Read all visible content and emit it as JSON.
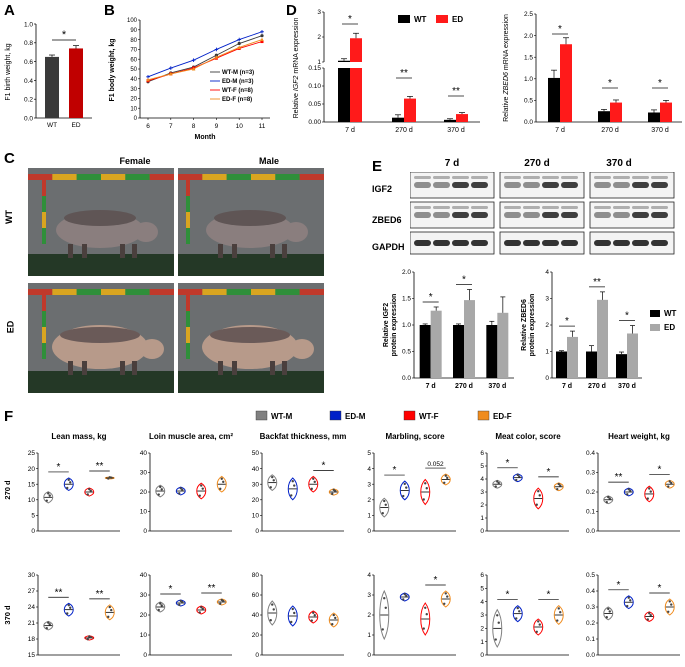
{
  "figure": {
    "panel_labels": [
      "A",
      "B",
      "C",
      "D",
      "E",
      "F"
    ],
    "colors": {
      "wt_dark": "#3a3a3a",
      "ed_red": "#c00000",
      "wtm": "#808080",
      "edm": "#0020c8",
      "wtf": "#ff0000",
      "edf": "#f08c1e",
      "wt_black": "#000000",
      "ed_gray": "#a8a8a8",
      "bright_red": "#ff1a1a"
    }
  },
  "panel_a": {
    "chart_data": {
      "type": "bar",
      "ylabel": "F1 birth weight, kg",
      "categories": [
        "WT",
        "ED"
      ],
      "values": [
        0.65,
        0.74
      ],
      "errors": [
        0.02,
        0.03
      ],
      "ylim": [
        0,
        1.0
      ],
      "yticks": [
        "0.0",
        "0.2",
        "0.4",
        "0.6",
        "0.8",
        "1.0"
      ],
      "sig": "*"
    }
  },
  "panel_b": {
    "chart_data": {
      "type": "line",
      "ylabel": "F1 body weight, kg",
      "xlabel": "Month",
      "x": [
        6,
        7,
        8,
        9,
        10,
        11
      ],
      "ylim": [
        0,
        100
      ],
      "yticks": [
        "0",
        "10",
        "20",
        "30",
        "40",
        "50",
        "60",
        "70",
        "80",
        "90",
        "100"
      ],
      "series": [
        {
          "name": "WT-M (n=3)",
          "values": [
            37,
            46,
            52,
            64,
            76,
            84
          ]
        },
        {
          "name": "ED-M (n=3)",
          "values": [
            42,
            51,
            59,
            70,
            80,
            88
          ]
        },
        {
          "name": "WT-F (n=8)",
          "values": [
            38,
            45,
            51,
            61,
            71,
            78
          ]
        },
        {
          "name": "ED-F (n=8)",
          "values": [
            39,
            45,
            50,
            62,
            72,
            80
          ]
        }
      ]
    }
  },
  "panel_c": {
    "col_headers": [
      "Female",
      "Male"
    ],
    "row_labels": [
      "WT",
      "ED"
    ]
  },
  "panel_d": {
    "legend": [
      "WT",
      "ED"
    ],
    "chart_data": [
      {
        "type": "bar",
        "ylabel_pre": "Relative ",
        "ylabel_gene": "IGF2",
        "ylabel_post": " mRNA expression",
        "categories": [
          "7 d",
          "270 d",
          "370 d"
        ],
        "series": [
          {
            "name": "WT",
            "values": [
              1.05,
              0.012,
              0.006
            ],
            "errors": [
              0.08,
              0.008,
              0.003
            ]
          },
          {
            "name": "ED",
            "values": [
              1.95,
              0.065,
              0.022
            ],
            "errors": [
              0.2,
              0.006,
              0.004
            ]
          }
        ],
        "yticks_upper": [
          "1",
          "2",
          "3"
        ],
        "yticks_lower": [
          "0.00",
          "0.05",
          "0.10",
          "0.15"
        ],
        "sig": [
          "*",
          "**",
          "**"
        ]
      },
      {
        "type": "bar",
        "ylabel_pre": "Relative ",
        "ylabel_gene": "ZBED6",
        "ylabel_post": " mRNA expression",
        "categories": [
          "7 d",
          "270 d",
          "370 d"
        ],
        "series": [
          {
            "name": "WT",
            "values": [
              1.02,
              0.25,
              0.22
            ],
            "errors": [
              0.18,
              0.04,
              0.06
            ]
          },
          {
            "name": "ED",
            "values": [
              1.8,
              0.45,
              0.45
            ],
            "errors": [
              0.15,
              0.06,
              0.05
            ]
          }
        ],
        "ylim": [
          0,
          2.5
        ],
        "yticks": [
          "0.0",
          "0.5",
          "1.0",
          "1.5",
          "2.0",
          "2.5"
        ],
        "sig": [
          "*",
          "*",
          "*"
        ]
      }
    ]
  },
  "panel_e": {
    "blot_headers": [
      "7 d",
      "270 d",
      "370 d"
    ],
    "blot_rows": [
      "IGF2",
      "ZBED6",
      "GAPDH"
    ],
    "legend": [
      "WT",
      "ED"
    ],
    "chart_data": [
      {
        "type": "bar",
        "ylabel": [
          "Relative IGF2",
          "protein expression"
        ],
        "categories": [
          "7 d",
          "270 d",
          "370 d"
        ],
        "series": [
          {
            "name": "WT",
            "values": [
              1.0,
              1.0,
              1.0
            ],
            "errors": [
              0.02,
              0.02,
              0.07
            ]
          },
          {
            "name": "ED",
            "values": [
              1.27,
              1.47,
              1.23
            ],
            "errors": [
              0.07,
              0.2,
              0.3
            ]
          }
        ],
        "ylim": [
          0,
          2.0
        ],
        "yticks": [
          "0.0",
          "0.5",
          "1.0",
          "1.5",
          "2.0"
        ],
        "sig": [
          "*",
          "*",
          ""
        ]
      },
      {
        "type": "bar",
        "ylabel": [
          "Relative ZBED6",
          "protein expression"
        ],
        "categories": [
          "7 d",
          "270 d",
          "370 d"
        ],
        "series": [
          {
            "name": "WT",
            "values": [
              1.0,
              1.0,
              0.9
            ],
            "errors": [
              0.03,
              0.22,
              0.08
            ]
          },
          {
            "name": "ED",
            "values": [
              1.55,
              2.95,
              1.68
            ],
            "errors": [
              0.22,
              0.3,
              0.3
            ]
          }
        ],
        "ylim": [
          0,
          4
        ],
        "yticks": [
          "0",
          "1",
          "2",
          "3",
          "4"
        ],
        "sig": [
          "*",
          "**",
          "*"
        ]
      }
    ]
  },
  "panel_f": {
    "legend": [
      "WT-M",
      "ED-M",
      "WT-F",
      "ED-F"
    ],
    "row_labels": [
      "270 d",
      "370 d"
    ],
    "titles": [
      "Lean mass, kg",
      "Loin muscle area, cm²",
      "Backfat thickness, mm",
      "Marbling, score",
      "Meat color, score",
      "Heart weight, kg"
    ],
    "chart_data": [
      {
        "type": "violin",
        "row": "270 d",
        "title": "Lean mass, kg",
        "yticks": [
          "0",
          "5",
          "10",
          "15",
          "20",
          "25"
        ],
        "ylim": [
          0,
          25
        ],
        "medians": [
          10.8,
          15.0,
          12.5,
          17.0
        ],
        "spread": [
          1.8,
          2.0,
          1.3,
          0.3
        ],
        "sig": [
          {
            "pair": [
              0,
              1
            ],
            "label": "*"
          },
          {
            "pair": [
              2,
              3
            ],
            "label": "**"
          }
        ]
      },
      {
        "type": "violin",
        "row": "270 d",
        "title": "Loin muscle area, cm²",
        "yticks": [
          "0",
          "10",
          "20",
          "30",
          "40"
        ],
        "ylim": [
          0,
          40
        ],
        "medians": [
          20.5,
          20.5,
          20.5,
          24.0
        ],
        "spread": [
          3,
          2,
          4,
          4
        ],
        "sig": []
      },
      {
        "type": "violin",
        "row": "270 d",
        "title": "Backfat thickness, mm",
        "yticks": [
          "0",
          "10",
          "20",
          "30",
          "40",
          "50"
        ],
        "ylim": [
          0,
          50
        ],
        "medians": [
          31,
          27,
          30,
          25
        ],
        "spread": [
          5,
          7,
          5,
          2
        ],
        "sig": [
          {
            "pair": [
              2,
              3
            ],
            "label": "*"
          }
        ]
      },
      {
        "type": "violin",
        "row": "270 d",
        "title": "Marbling, score",
        "yticks": [
          "0",
          "1",
          "2",
          "3",
          "4",
          "5"
        ],
        "ylim": [
          0,
          5
        ],
        "medians": [
          1.5,
          2.6,
          2.5,
          3.3
        ],
        "spread": [
          0.6,
          0.6,
          0.8,
          0.35
        ],
        "sig": [
          {
            "pair": [
              0,
              1
            ],
            "label": "*"
          },
          {
            "pair": [
              2,
              3
            ],
            "label": "0.052"
          }
        ]
      },
      {
        "type": "violin",
        "row": "270 d",
        "title": "Meat color, score",
        "yticks": [
          "0",
          "1",
          "2",
          "3",
          "4",
          "5",
          "6"
        ],
        "ylim": [
          0,
          6
        ],
        "medians": [
          3.6,
          4.1,
          2.5,
          3.4
        ],
        "spread": [
          0.3,
          0.3,
          0.8,
          0.3
        ],
        "sig": [
          {
            "pair": [
              0,
              1
            ],
            "label": "*"
          },
          {
            "pair": [
              2,
              3
            ],
            "label": "*"
          }
        ]
      },
      {
        "type": "violin",
        "row": "270 d",
        "title": "Heart weight, kg",
        "yticks": [
          "0.0",
          "0.1",
          "0.2",
          "0.3",
          "0.4"
        ],
        "ylim": [
          0,
          0.4
        ],
        "medians": [
          0.16,
          0.2,
          0.19,
          0.24
        ],
        "spread": [
          0.02,
          0.02,
          0.04,
          0.02
        ],
        "sig": [
          {
            "pair": [
              0,
              1
            ],
            "label": "**"
          },
          {
            "pair": [
              2,
              3
            ],
            "label": "*"
          }
        ]
      },
      {
        "type": "violin",
        "row": "370 d",
        "title": "Lean mass, kg",
        "yticks": [
          "15",
          "18",
          "21",
          "24",
          "27",
          "30"
        ],
        "ylim": [
          15,
          30
        ],
        "medians": [
          20.5,
          23.5,
          18.2,
          23
        ],
        "spread": [
          0.8,
          1.2,
          0.4,
          1.4
        ],
        "sig": [
          {
            "pair": [
              0,
              1
            ],
            "label": "**"
          },
          {
            "pair": [
              2,
              3
            ],
            "label": "**"
          }
        ]
      },
      {
        "type": "violin",
        "row": "370 d",
        "title": "Loin muscle area, cm²",
        "yticks": [
          "0",
          "10",
          "20",
          "30",
          "40"
        ],
        "ylim": [
          0,
          40
        ],
        "medians": [
          24,
          26,
          22.5,
          26.5
        ],
        "spread": [
          2.5,
          1.5,
          2,
          1.5
        ],
        "sig": [
          {
            "pair": [
              0,
              1
            ],
            "label": "*"
          },
          {
            "pair": [
              2,
              3
            ],
            "label": "**"
          }
        ]
      },
      {
        "type": "violin",
        "row": "370 d",
        "title": "Backfat thickness, mm",
        "yticks": [
          "0",
          "20",
          "40",
          "60",
          "80"
        ],
        "ylim": [
          0,
          80
        ],
        "medians": [
          42,
          39,
          38,
          35
        ],
        "spread": [
          12,
          10,
          6,
          7
        ],
        "sig": []
      },
      {
        "type": "violin",
        "row": "370 d",
        "title": "Marbling, score",
        "yticks": [
          "0",
          "1",
          "2",
          "3",
          "4"
        ],
        "ylim": [
          0,
          4
        ],
        "medians": [
          2.0,
          2.9,
          1.8,
          2.8
        ],
        "spread": [
          1.2,
          0.2,
          0.8,
          0.4
        ],
        "sig": [
          {
            "pair": [
              2,
              3
            ],
            "label": "*"
          }
        ]
      },
      {
        "type": "violin",
        "row": "370 d",
        "title": "Meat color, score",
        "yticks": [
          "0",
          "1",
          "2",
          "3",
          "4",
          "5",
          "6"
        ],
        "ylim": [
          0,
          6
        ],
        "medians": [
          2.0,
          3.1,
          2.1,
          3.0
        ],
        "spread": [
          1.4,
          0.6,
          0.6,
          0.7
        ],
        "sig": [
          {
            "pair": [
              0,
              1
            ],
            "label": "*"
          },
          {
            "pair": [
              2,
              3
            ],
            "label": "*"
          }
        ]
      },
      {
        "type": "violin",
        "row": "370 d",
        "title": "Heart weight, kg",
        "yticks": [
          "0.0",
          "0.1",
          "0.2",
          "0.3",
          "0.4",
          "0.5"
        ],
        "ylim": [
          0,
          0.5
        ],
        "medians": [
          0.26,
          0.33,
          0.24,
          0.3
        ],
        "spread": [
          0.04,
          0.04,
          0.03,
          0.05
        ],
        "sig": [
          {
            "pair": [
              0,
              1
            ],
            "label": "*"
          },
          {
            "pair": [
              2,
              3
            ],
            "label": "*"
          }
        ]
      }
    ]
  }
}
